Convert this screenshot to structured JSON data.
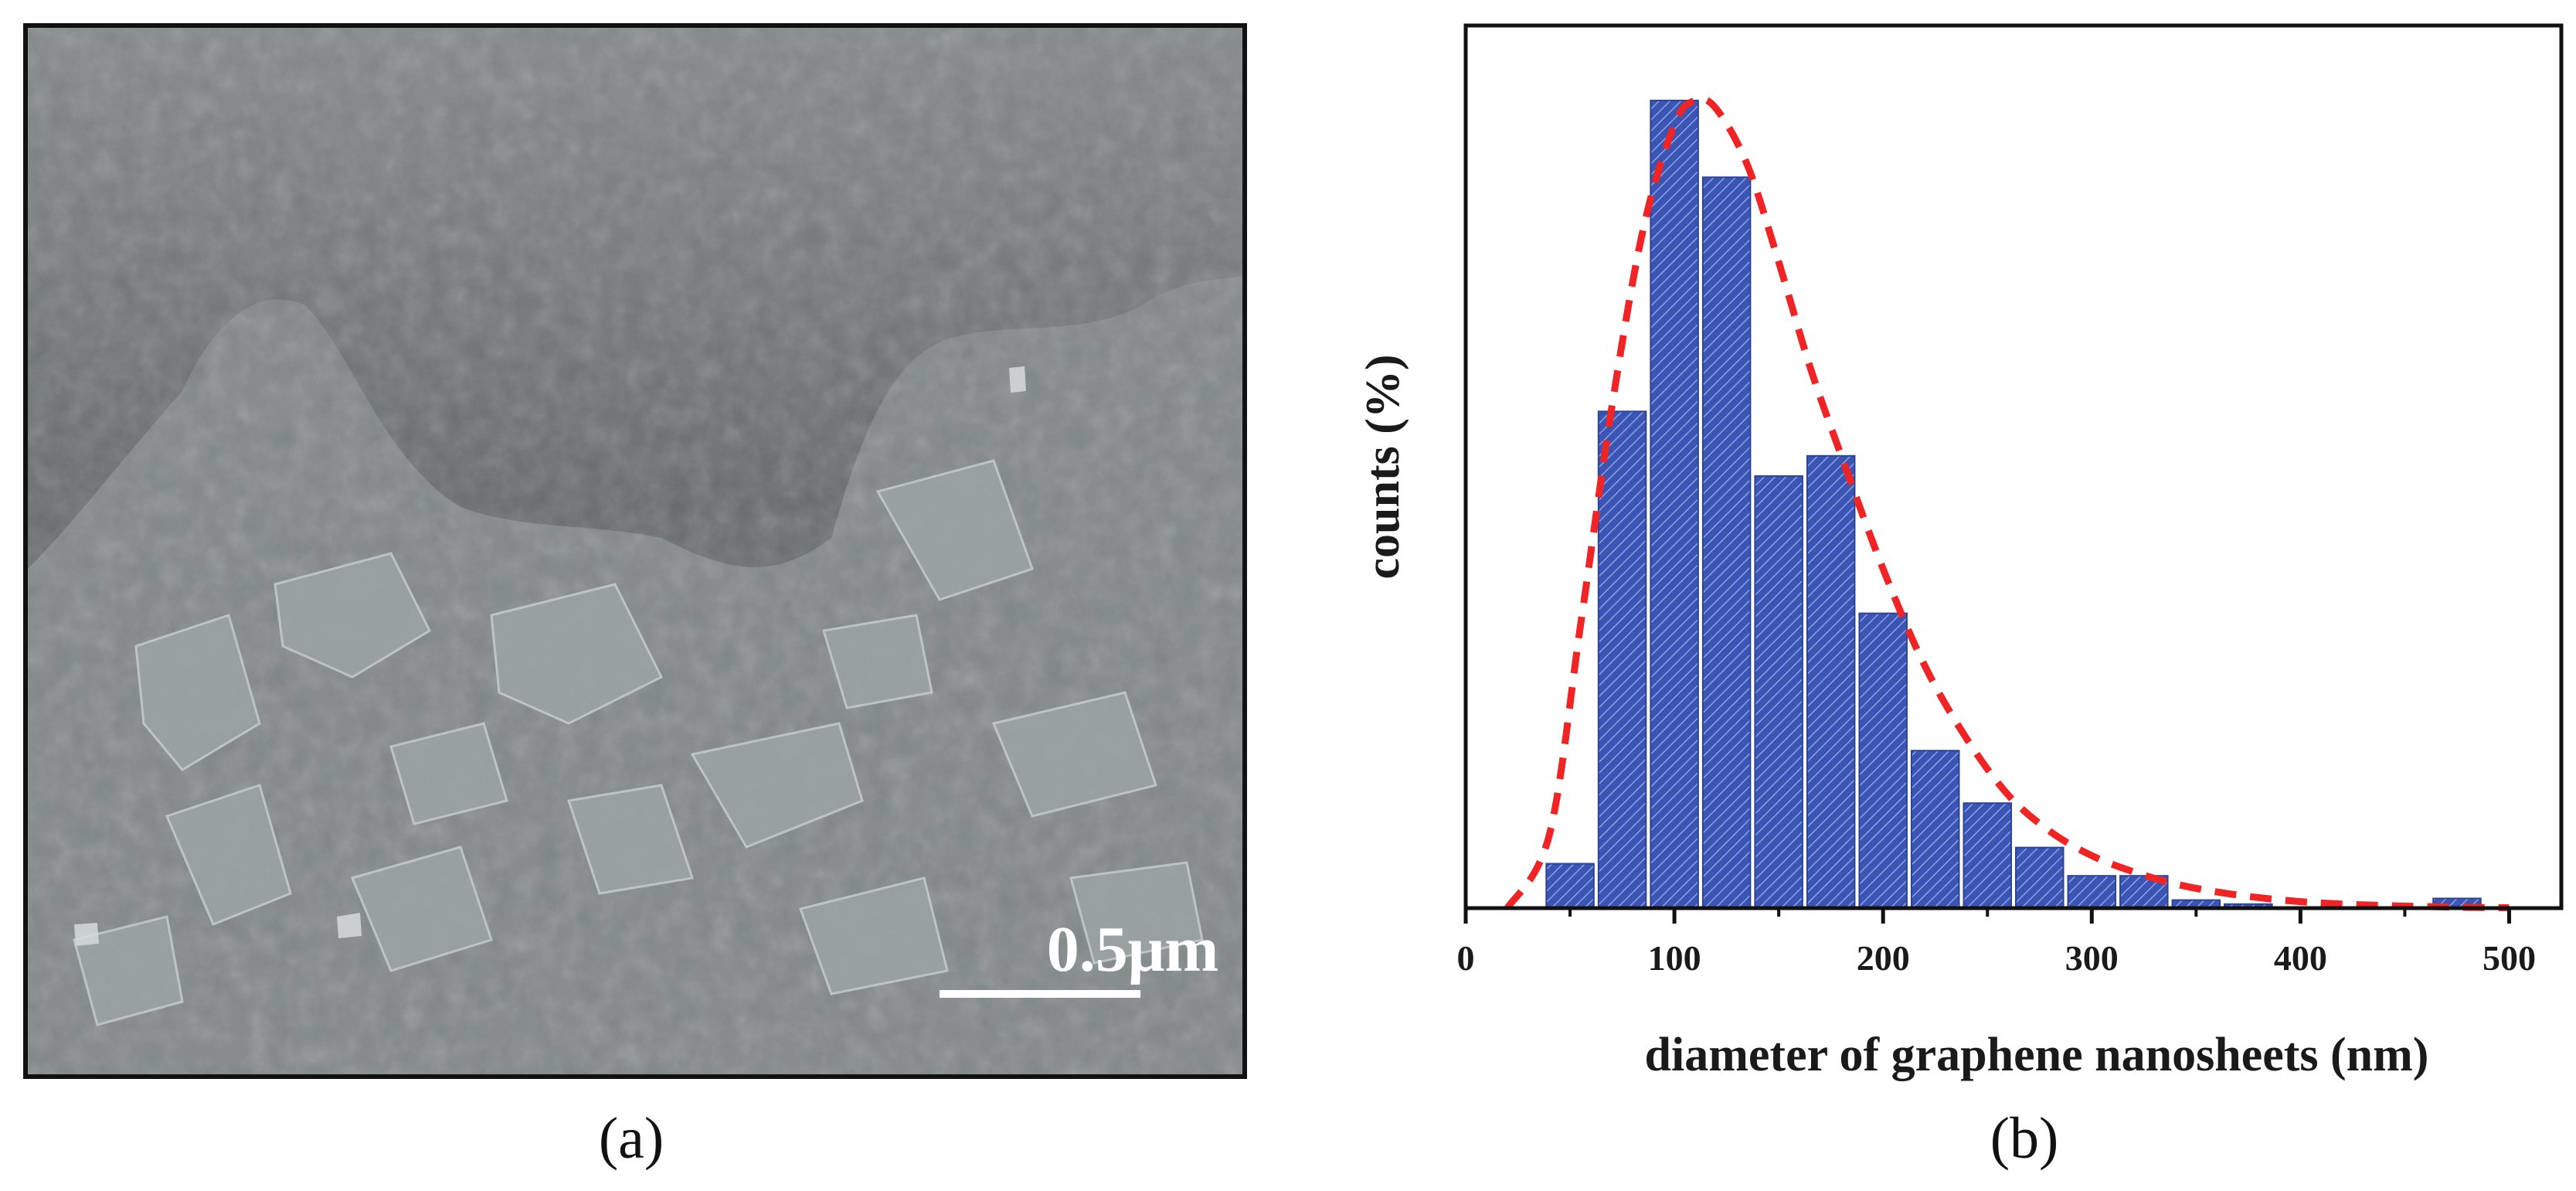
{
  "panels": {
    "a": {
      "label": "(a)",
      "scale_bar_text": "0.5μm"
    },
    "b": {
      "label": "(b)"
    }
  },
  "colors": {
    "bar_fill": "#3a55b4",
    "bar_hatch": "#8fa2e0",
    "fit_line": "#f02424",
    "axis": "#111111"
  },
  "chart_data": {
    "type": "bar",
    "xlabel": "diameter of graphene nanosheets (nm)",
    "ylabel": "counts (%)",
    "xlim": [
      0,
      525
    ],
    "ylim": [
      0,
      100
    ],
    "x_ticks": [
      0,
      100,
      200,
      300,
      400,
      500
    ],
    "y_ticks_shown": false,
    "bin_width": 25,
    "bins": [
      {
        "x": 50,
        "value": 5.5
      },
      {
        "x": 75,
        "value": 61.5
      },
      {
        "x": 100,
        "value": 100
      },
      {
        "x": 125,
        "value": 90.5
      },
      {
        "x": 150,
        "value": 53.5
      },
      {
        "x": 175,
        "value": 56
      },
      {
        "x": 200,
        "value": 36.5
      },
      {
        "x": 225,
        "value": 19.5
      },
      {
        "x": 250,
        "value": 13
      },
      {
        "x": 275,
        "value": 7.5
      },
      {
        "x": 300,
        "value": 4
      },
      {
        "x": 325,
        "value": 4
      },
      {
        "x": 350,
        "value": 1
      },
      {
        "x": 375,
        "value": 0.5
      },
      {
        "x": 400,
        "value": 0
      },
      {
        "x": 425,
        "value": 0
      },
      {
        "x": 450,
        "value": 0
      },
      {
        "x": 475,
        "value": 1.2
      }
    ],
    "fit_curve": {
      "style": "dashed",
      "points": [
        [
          20,
          0
        ],
        [
          40,
          9
        ],
        [
          55,
          35
        ],
        [
          70,
          62
        ],
        [
          85,
          84
        ],
        [
          100,
          97
        ],
        [
          110,
          100
        ],
        [
          120,
          99
        ],
        [
          135,
          92
        ],
        [
          150,
          80
        ],
        [
          165,
          67
        ],
        [
          180,
          56
        ],
        [
          200,
          42
        ],
        [
          220,
          30
        ],
        [
          240,
          21
        ],
        [
          260,
          14
        ],
        [
          280,
          9.5
        ],
        [
          300,
          6.5
        ],
        [
          320,
          4.5
        ],
        [
          340,
          3
        ],
        [
          360,
          2
        ],
        [
          380,
          1.3
        ],
        [
          400,
          0.8
        ],
        [
          420,
          0.5
        ],
        [
          450,
          0.25
        ],
        [
          480,
          0.1
        ],
        [
          500,
          0.05
        ]
      ]
    }
  }
}
